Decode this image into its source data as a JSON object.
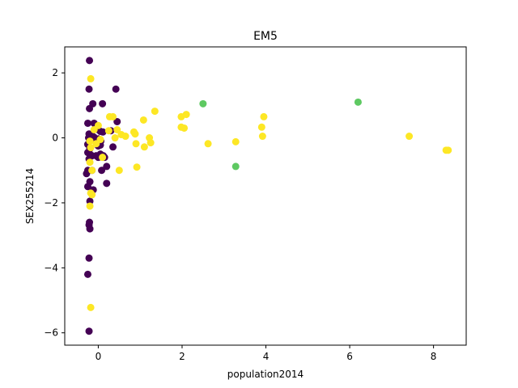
{
  "chart_data": {
    "type": "scatter",
    "title": "EM5",
    "xlabel": "population2014",
    "ylabel": "SEX255214",
    "xlim": [
      -0.8,
      8.78
    ],
    "ylim": [
      -6.38,
      2.8
    ],
    "xticks": [
      0,
      2,
      4,
      6,
      8
    ],
    "yticks": [
      -6,
      -4,
      -2,
      0,
      2
    ],
    "grid": false,
    "legend": "none",
    "series": [
      {
        "color": "#440154",
        "points": [
          [
            -0.21,
            2.38
          ],
          [
            -0.22,
            1.5
          ],
          [
            -0.13,
            1.05
          ],
          [
            0.1,
            1.05
          ],
          [
            0.42,
            1.5
          ],
          [
            -0.21,
            0.9
          ],
          [
            -0.25,
            0.45
          ],
          [
            -0.1,
            0.45
          ],
          [
            0.0,
            0.25
          ],
          [
            0.05,
            0.2
          ],
          [
            0.11,
            0.18
          ],
          [
            -0.22,
            0.12
          ],
          [
            -0.16,
            0.1
          ],
          [
            0.45,
            0.5
          ],
          [
            0.3,
            0.22
          ],
          [
            -0.23,
            0.0
          ],
          [
            -0.18,
            -0.05
          ],
          [
            -0.1,
            0.02
          ],
          [
            0.0,
            -0.03
          ],
          [
            0.06,
            -0.1
          ],
          [
            -0.25,
            -0.2
          ],
          [
            -0.2,
            -0.33
          ],
          [
            0.0,
            -0.25
          ],
          [
            0.35,
            -0.28
          ],
          [
            -0.25,
            -0.45
          ],
          [
            -0.2,
            -0.5
          ],
          [
            -0.15,
            -0.55
          ],
          [
            0.05,
            -0.5
          ],
          [
            0.12,
            -0.55
          ],
          [
            0.15,
            -0.6
          ],
          [
            -0.22,
            -0.65
          ],
          [
            0.0,
            -0.6
          ],
          [
            -0.05,
            -0.55
          ],
          [
            -0.25,
            -1.0
          ],
          [
            -0.15,
            -1.0
          ],
          [
            0.08,
            -1.0
          ],
          [
            0.2,
            -0.88
          ],
          [
            -0.28,
            -1.1
          ],
          [
            -0.2,
            -1.35
          ],
          [
            0.2,
            -1.4
          ],
          [
            -0.12,
            -1.6
          ],
          [
            -0.25,
            -1.5
          ],
          [
            -0.2,
            -1.95
          ],
          [
            -0.21,
            -2.6
          ],
          [
            -0.22,
            -2.68
          ],
          [
            -0.2,
            -2.8
          ],
          [
            -0.22,
            -3.7
          ],
          [
            -0.25,
            -4.2
          ],
          [
            -0.22,
            -5.95
          ],
          [
            0.05,
            -0.22
          ]
        ]
      },
      {
        "color": "#5ec962",
        "points": [
          [
            2.5,
            1.05
          ],
          [
            6.2,
            1.1
          ],
          [
            3.28,
            -0.88
          ]
        ]
      },
      {
        "color": "#fde725",
        "points": [
          [
            -0.18,
            1.82
          ],
          [
            0.27,
            0.65
          ],
          [
            0.35,
            0.65
          ],
          [
            0.25,
            0.22
          ],
          [
            0.45,
            0.25
          ],
          [
            0.55,
            0.1
          ],
          [
            0.65,
            0.05
          ],
          [
            0.85,
            0.18
          ],
          [
            0.88,
            0.12
          ],
          [
            0.9,
            -0.18
          ],
          [
            0.92,
            -0.9
          ],
          [
            1.08,
            0.55
          ],
          [
            1.1,
            -0.28
          ],
          [
            1.22,
            0.0
          ],
          [
            1.25,
            -0.15
          ],
          [
            1.35,
            0.82
          ],
          [
            1.98,
            0.33
          ],
          [
            2.05,
            0.3
          ],
          [
            1.98,
            0.65
          ],
          [
            2.1,
            0.72
          ],
          [
            2.62,
            -0.18
          ],
          [
            3.28,
            -0.12
          ],
          [
            3.9,
            0.33
          ],
          [
            3.95,
            0.65
          ],
          [
            3.92,
            0.05
          ],
          [
            7.42,
            0.05
          ],
          [
            8.3,
            -0.38
          ],
          [
            8.35,
            -0.38
          ],
          [
            0.5,
            -1.0
          ],
          [
            0.4,
            0.0
          ],
          [
            -0.2,
            -0.1
          ],
          [
            -0.18,
            -0.3
          ],
          [
            -0.2,
            -0.75
          ],
          [
            -0.15,
            -1.0
          ],
          [
            -0.18,
            -1.7
          ],
          [
            -0.2,
            -2.1
          ],
          [
            -0.15,
            -1.75
          ],
          [
            -0.18,
            -5.22
          ],
          [
            0.0,
            0.38
          ],
          [
            -0.1,
            0.25
          ],
          [
            0.05,
            -0.05
          ],
          [
            -0.05,
            -0.18
          ],
          [
            0.1,
            -0.6
          ]
        ]
      }
    ]
  }
}
